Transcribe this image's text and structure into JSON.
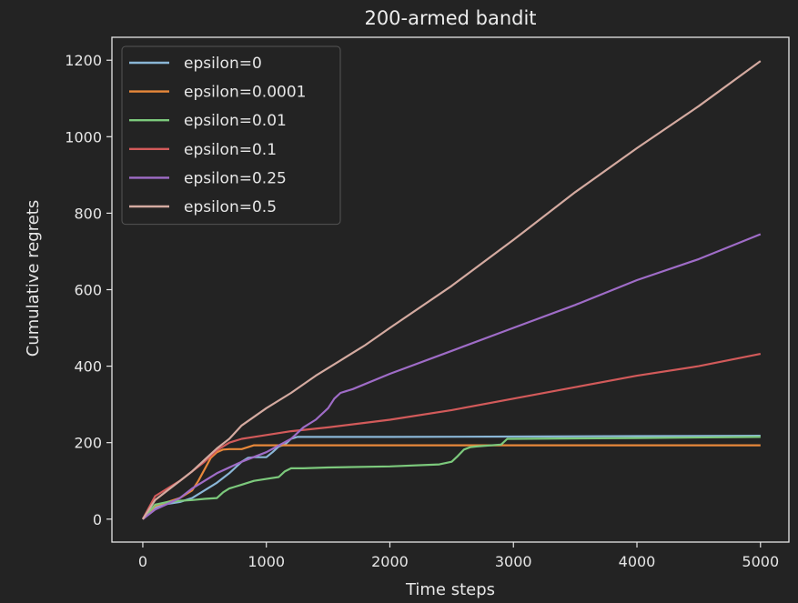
{
  "chart_data": {
    "type": "line",
    "title": "200-armed bandit",
    "xlabel": "Time steps",
    "ylabel": "Cumulative regrets",
    "xlim": [
      -250,
      5230
    ],
    "ylim": [
      -60,
      1260
    ],
    "xticks": [
      0,
      1000,
      2000,
      3000,
      4000,
      5000
    ],
    "yticks": [
      0,
      200,
      400,
      600,
      800,
      1000,
      1200
    ],
    "grid": false,
    "legend_position": "top-left",
    "series": [
      {
        "name": "epsilon=0",
        "color": "#8ab6d6",
        "x": [
          0,
          100,
          200,
          300,
          400,
          500,
          600,
          700,
          750,
          800,
          850,
          900,
          1000,
          1050,
          1100,
          1150,
          1200,
          1250,
          1300,
          2000,
          3000,
          4000,
          5000
        ],
        "y": [
          0,
          30,
          40,
          45,
          55,
          75,
          95,
          120,
          135,
          150,
          160,
          162,
          162,
          175,
          190,
          195,
          210,
          215,
          215,
          215,
          216,
          217,
          218
        ]
      },
      {
        "name": "epsilon=0.0001",
        "color": "#e8883a",
        "x": [
          0,
          100,
          200,
          300,
          400,
          450,
          500,
          550,
          600,
          650,
          700,
          750,
          800,
          900,
          1000,
          2000,
          3000,
          4000,
          5000
        ],
        "y": [
          0,
          35,
          45,
          55,
          75,
          100,
          130,
          160,
          175,
          182,
          183,
          183,
          183,
          193,
          193,
          193,
          193,
          193,
          193
        ]
      },
      {
        "name": "epsilon=0.01",
        "color": "#7cc97c",
        "x": [
          0,
          100,
          200,
          300,
          400,
          500,
          600,
          650,
          700,
          750,
          800,
          900,
          1000,
          1100,
          1150,
          1200,
          1300,
          1500,
          2000,
          2400,
          2500,
          2550,
          2600,
          2650,
          2700,
          2900,
          2950,
          3000,
          4000,
          5000
        ],
        "y": [
          0,
          38,
          45,
          48,
          50,
          53,
          55,
          70,
          80,
          85,
          90,
          100,
          105,
          110,
          125,
          133,
          133,
          135,
          138,
          143,
          150,
          165,
          182,
          188,
          190,
          195,
          210,
          210,
          212,
          215
        ]
      },
      {
        "name": "epsilon=0.1",
        "color": "#d25a5a",
        "x": [
          0,
          100,
          200,
          300,
          400,
          500,
          600,
          700,
          800,
          900,
          1000,
          1200,
          1500,
          2000,
          2500,
          3000,
          3500,
          4000,
          4500,
          5000
        ],
        "y": [
          0,
          60,
          80,
          100,
          125,
          150,
          180,
          200,
          210,
          215,
          220,
          230,
          240,
          260,
          285,
          315,
          345,
          375,
          400,
          432
        ]
      },
      {
        "name": "epsilon=0.25",
        "color": "#9f6cc7",
        "x": [
          0,
          100,
          200,
          300,
          400,
          500,
          600,
          800,
          1000,
          1200,
          1300,
          1400,
          1500,
          1550,
          1600,
          1700,
          2000,
          2500,
          3000,
          3500,
          4000,
          4500,
          5000
        ],
        "y": [
          0,
          25,
          40,
          55,
          80,
          100,
          120,
          150,
          175,
          210,
          240,
          260,
          290,
          315,
          330,
          340,
          380,
          440,
          500,
          560,
          625,
          680,
          745
        ]
      },
      {
        "name": "epsilon=0.5",
        "color": "#d4aaa0",
        "x": [
          0,
          100,
          200,
          300,
          400,
          500,
          600,
          700,
          800,
          1000,
          1200,
          1400,
          1600,
          1800,
          2000,
          2500,
          3000,
          3500,
          4000,
          4500,
          5000
        ],
        "y": [
          0,
          50,
          75,
          100,
          125,
          155,
          185,
          210,
          245,
          290,
          330,
          375,
          415,
          455,
          500,
          610,
          730,
          855,
          970,
          1080,
          1198
        ]
      }
    ]
  }
}
